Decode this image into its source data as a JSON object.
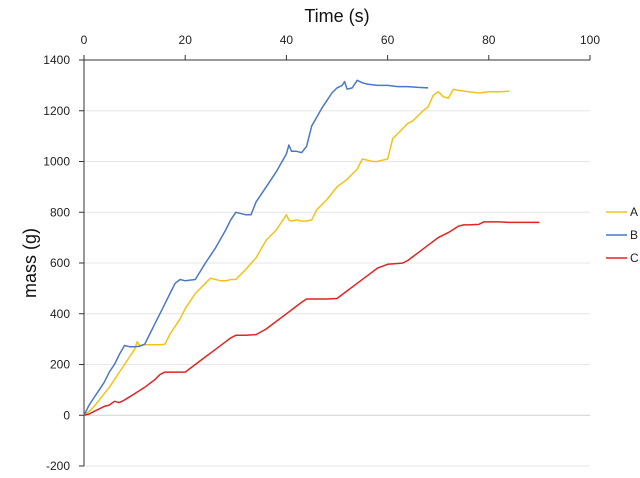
{
  "chart_data": {
    "type": "line",
    "title": "",
    "xlabel": "Time (s)",
    "ylabel": "mass (g)",
    "xlim": [
      0,
      100
    ],
    "ylim": [
      -200,
      1400
    ],
    "x_ticks": [
      0,
      20,
      40,
      60,
      80,
      100
    ],
    "y_ticks": [
      -200,
      0,
      200,
      400,
      600,
      800,
      1000,
      1200,
      1400
    ],
    "x_axis_position": "top",
    "grid": true,
    "legend_position": "right",
    "series": [
      {
        "name": "A",
        "color": "#f2c21b",
        "x": [
          0,
          1,
          2,
          3,
          4,
          5,
          6,
          7,
          8,
          9,
          10,
          10.5,
          11,
          12,
          13,
          14,
          15,
          16,
          17,
          18,
          19,
          20,
          22,
          24,
          25,
          26,
          27,
          28,
          29,
          30,
          32,
          34,
          36,
          38,
          39,
          40,
          40.5,
          41,
          42,
          43,
          44,
          45,
          46,
          48,
          50,
          52,
          54,
          55,
          56,
          57,
          58,
          59,
          60,
          61,
          62,
          63,
          64,
          65,
          66,
          67,
          68,
          69,
          70,
          71,
          72,
          73,
          74,
          76,
          78,
          80,
          82,
          84
        ],
        "values": [
          0,
          15,
          35,
          60,
          85,
          110,
          140,
          170,
          200,
          230,
          260,
          290,
          275,
          278,
          278,
          278,
          278,
          280,
          320,
          350,
          380,
          420,
          480,
          520,
          540,
          535,
          530,
          530,
          535,
          535,
          575,
          620,
          690,
          730,
          760,
          790,
          770,
          765,
          770,
          765,
          765,
          770,
          810,
          850,
          900,
          930,
          970,
          1010,
          1005,
          1000,
          1000,
          1005,
          1010,
          1090,
          1110,
          1130,
          1150,
          1160,
          1180,
          1200,
          1215,
          1260,
          1275,
          1255,
          1250,
          1285,
          1280,
          1275,
          1270,
          1275,
          1275,
          1277
        ]
      },
      {
        "name": "B",
        "color": "#4a78c4",
        "x": [
          0,
          1,
          2,
          3,
          4,
          5,
          6,
          7,
          8,
          9,
          10,
          11,
          12,
          13,
          14,
          15,
          16,
          17,
          18,
          19,
          20,
          22,
          24,
          26,
          28,
          29,
          30,
          32,
          33,
          34,
          36,
          38,
          40,
          40.5,
          41,
          42,
          43,
          44,
          45,
          46,
          47,
          48,
          49,
          50,
          51,
          51.5,
          52,
          53,
          54,
          55,
          56,
          58,
          60,
          62,
          64,
          66,
          68
        ],
        "values": [
          0,
          40,
          70,
          100,
          130,
          170,
          200,
          240,
          275,
          270,
          270,
          272,
          280,
          320,
          360,
          400,
          440,
          480,
          520,
          535,
          530,
          535,
          600,
          660,
          730,
          770,
          800,
          790,
          790,
          840,
          900,
          960,
          1030,
          1065,
          1040,
          1040,
          1035,
          1060,
          1140,
          1175,
          1210,
          1240,
          1270,
          1290,
          1300,
          1315,
          1285,
          1290,
          1320,
          1310,
          1305,
          1300,
          1300,
          1295,
          1295,
          1292,
          1290
        ]
      },
      {
        "name": "C",
        "color": "#e02424",
        "x": [
          0,
          1,
          2,
          3,
          4,
          5,
          6,
          7,
          8,
          10,
          12,
          14,
          15,
          16,
          18,
          20,
          22,
          24,
          26,
          28,
          29,
          30,
          32,
          34,
          36,
          38,
          40,
          42,
          43,
          44,
          46,
          48,
          50,
          52,
          54,
          56,
          58,
          60,
          62,
          63,
          64,
          66,
          68,
          70,
          72,
          74,
          75,
          76,
          78,
          79,
          80,
          82,
          84,
          86,
          88,
          90
        ],
        "values": [
          0,
          5,
          15,
          25,
          35,
          40,
          55,
          50,
          60,
          85,
          110,
          140,
          160,
          170,
          170,
          170,
          200,
          230,
          260,
          290,
          305,
          315,
          315,
          318,
          340,
          370,
          400,
          430,
          445,
          458,
          458,
          458,
          460,
          490,
          520,
          550,
          580,
          595,
          598,
          600,
          610,
          640,
          670,
          700,
          720,
          745,
          750,
          750,
          752,
          762,
          762,
          762,
          760,
          760,
          760,
          760
        ]
      }
    ]
  }
}
